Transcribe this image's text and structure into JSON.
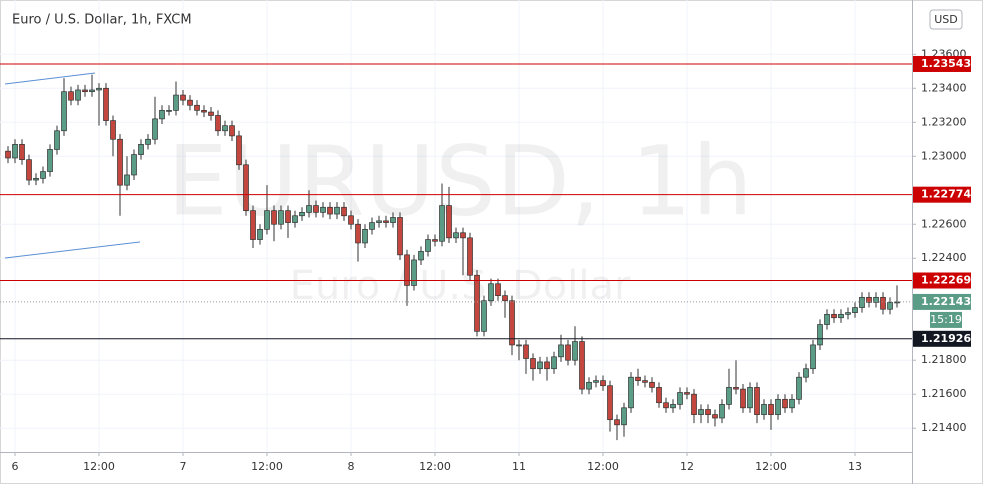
{
  "chart_data": {
    "type": "candlestick",
    "title": "Euro / U.S. Dollar, 1h, FXCM",
    "watermark": "EURUSD, 1h",
    "watermark_subtitle": "Euro / U.S. Dollar",
    "currency": "USD",
    "x_tick_labels": [
      "6",
      "12:00",
      "7",
      "12:00",
      "8",
      "12:00",
      "11",
      "12:00",
      "12",
      "12:00",
      "13"
    ],
    "ylim": [
      1.2126,
      1.2389
    ],
    "yticks": [
      {
        "value": 1.236,
        "label": "1.23600"
      },
      {
        "value": 1.234,
        "label": "1.23400"
      },
      {
        "value": 1.232,
        "label": "1.23200"
      },
      {
        "value": 1.23,
        "label": "1.23000"
      },
      {
        "value": 1.226,
        "label": "1.22600"
      },
      {
        "value": 1.224,
        "label": "1.22400"
      },
      {
        "value": 1.218,
        "label": "1.21800"
      },
      {
        "value": 1.216,
        "label": "1.21600"
      },
      {
        "value": 1.214,
        "label": "1.21400"
      }
    ],
    "grid": true,
    "up_color": "#5b9c87",
    "down_color": "#c4473f",
    "open": [
      1.2303,
      1.2299,
      1.2307,
      1.2298,
      1.2286,
      1.2287,
      1.2291,
      1.2304,
      1.2315,
      1.2338,
      1.2333,
      1.2339,
      1.2338,
      1.2339,
      1.234,
      1.2321,
      1.231,
      1.2283,
      1.2289,
      1.2301,
      1.2307,
      1.231,
      1.2322,
      1.2327,
      1.2327,
      1.2336,
      1.2333,
      1.233,
      1.2327,
      1.2326,
      1.2324,
      1.2315,
      1.2318,
      1.2312,
      1.2295,
      1.2268,
      1.2251,
      1.2257,
      1.2268,
      1.226,
      1.2268,
      1.2261,
      1.2265,
      1.2267,
      1.2271,
      1.2267,
      1.227,
      1.2266,
      1.227,
      1.2265,
      1.226,
      1.2249,
      1.2257,
      1.2261,
      1.2262,
      1.2261,
      1.2264,
      1.2242,
      1.2224,
      1.2239,
      1.2244,
      1.2251,
      1.225,
      1.2271,
      1.2252,
      1.2255,
      1.2252,
      1.223,
      1.2197,
      1.2215,
      1.2225,
      1.2218,
      1.2215,
      1.2189,
      1.2189,
      1.2181,
      1.2175,
      1.2179,
      1.2175,
      1.2182,
      1.2189,
      1.218,
      1.2191,
      1.2163,
      1.2167,
      1.2168,
      1.2165,
      1.2145,
      1.2142,
      1.2152,
      1.217,
      1.2168,
      1.2167,
      1.2164,
      1.2155,
      1.2152,
      1.2154,
      1.2161,
      1.216,
      1.2148,
      1.2151,
      1.2148,
      1.2146,
      1.2154,
      1.2164,
      1.2163,
      1.2152,
      1.2164,
      1.2148,
      1.2154,
      1.2148,
      1.2157,
      1.2152,
      1.2157,
      1.217,
      1.2175,
      1.2189,
      1.2201,
      1.2207,
      1.2205,
      1.2207,
      1.2208,
      1.2211,
      1.2217,
      1.2214,
      1.2217,
      1.221,
      1.2214
    ],
    "high": [
      1.2306,
      1.231,
      1.231,
      1.2301,
      1.229,
      1.2294,
      1.2307,
      1.2318,
      1.2346,
      1.2341,
      1.2342,
      1.2342,
      1.2348,
      1.2343,
      1.2343,
      1.2324,
      1.2313,
      1.23,
      1.2304,
      1.231,
      1.2313,
      1.2335,
      1.233,
      1.233,
      1.2344,
      1.2339,
      1.2336,
      1.2333,
      1.233,
      1.2329,
      1.2327,
      1.2321,
      1.2321,
      1.2315,
      1.2298,
      1.2271,
      1.226,
      1.2283,
      1.2271,
      1.2271,
      1.2271,
      1.2268,
      1.227,
      1.228,
      1.2274,
      1.2273,
      1.2273,
      1.2273,
      1.2273,
      1.2268,
      1.2263,
      1.226,
      1.2264,
      1.2265,
      1.2265,
      1.2267,
      1.2267,
      1.2245,
      1.2242,
      1.2247,
      1.2254,
      1.2254,
      1.2284,
      1.2282,
      1.2258,
      1.2258,
      1.2255,
      1.2233,
      1.2218,
      1.2228,
      1.2228,
      1.2221,
      1.2218,
      1.2192,
      1.2192,
      1.2184,
      1.2182,
      1.2182,
      1.2185,
      1.2195,
      1.2192,
      1.22,
      1.2194,
      1.217,
      1.2171,
      1.2171,
      1.2168,
      1.2148,
      1.2155,
      1.2173,
      1.2175,
      1.2171,
      1.217,
      1.2167,
      1.2158,
      1.2157,
      1.2164,
      1.2164,
      1.2163,
      1.2154,
      1.2154,
      1.2151,
      1.2157,
      1.2175,
      1.218,
      1.2166,
      1.2167,
      1.2167,
      1.2157,
      1.2157,
      1.216,
      1.216,
      1.216,
      1.2173,
      1.2178,
      1.2192,
      1.2204,
      1.221,
      1.221,
      1.221,
      1.2211,
      1.2214,
      1.222,
      1.222,
      1.222,
      1.222,
      1.2217,
      1.2224
    ],
    "low": [
      1.2296,
      1.2296,
      1.2295,
      1.2283,
      1.2283,
      1.2284,
      1.2288,
      1.2301,
      1.2312,
      1.233,
      1.233,
      1.2335,
      1.2335,
      1.2318,
      1.2318,
      1.23,
      1.2265,
      1.228,
      1.2286,
      1.2298,
      1.2304,
      1.2307,
      1.2319,
      1.2324,
      1.2324,
      1.233,
      1.2327,
      1.2324,
      1.2323,
      1.2321,
      1.2312,
      1.2312,
      1.2309,
      1.2292,
      1.2265,
      1.2246,
      1.2248,
      1.2254,
      1.225,
      1.2257,
      1.2252,
      1.2258,
      1.2262,
      1.2264,
      1.2264,
      1.2264,
      1.2263,
      1.2263,
      1.2262,
      1.2257,
      1.2238,
      1.2246,
      1.2254,
      1.2258,
      1.2258,
      1.2258,
      1.2239,
      1.2212,
      1.2221,
      1.2236,
      1.2241,
      1.2247,
      1.2247,
      1.2249,
      1.2249,
      1.223,
      1.2227,
      1.2194,
      1.2194,
      1.2212,
      1.2215,
      1.2205,
      1.2183,
      1.218,
      1.2172,
      1.2168,
      1.2172,
      1.2168,
      1.2172,
      1.2179,
      1.2177,
      1.2177,
      1.216,
      1.216,
      1.2164,
      1.2162,
      1.2138,
      1.2133,
      1.2135,
      1.2149,
      1.2165,
      1.2164,
      1.2161,
      1.2152,
      1.2149,
      1.2149,
      1.2151,
      1.2157,
      1.2143,
      1.2143,
      1.2143,
      1.2141,
      1.2143,
      1.2151,
      1.216,
      1.2149,
      1.2149,
      1.2143,
      1.2145,
      1.2139,
      1.2145,
      1.2149,
      1.2149,
      1.2154,
      1.2167,
      1.2172,
      1.2186,
      1.2198,
      1.2202,
      1.2202,
      1.2204,
      1.2205,
      1.2208,
      1.2211,
      1.2211,
      1.2207,
      1.2207,
      1.2211
    ],
    "close": [
      1.2299,
      1.2307,
      1.2298,
      1.2286,
      1.2287,
      1.2291,
      1.2304,
      1.2315,
      1.2338,
      1.2333,
      1.2339,
      1.2338,
      1.2339,
      1.234,
      1.2321,
      1.231,
      1.2283,
      1.2289,
      1.2301,
      1.2307,
      1.231,
      1.2322,
      1.2327,
      1.2327,
      1.2336,
      1.2333,
      1.233,
      1.2327,
      1.2326,
      1.2324,
      1.2315,
      1.2318,
      1.2312,
      1.2295,
      1.2268,
      1.2251,
      1.2257,
      1.2268,
      1.226,
      1.2268,
      1.2261,
      1.2265,
      1.2267,
      1.2271,
      1.2267,
      1.227,
      1.2266,
      1.227,
      1.2265,
      1.226,
      1.2249,
      1.2257,
      1.2261,
      1.2262,
      1.2261,
      1.2264,
      1.2242,
      1.2224,
      1.2239,
      1.2244,
      1.2251,
      1.225,
      1.2271,
      1.2252,
      1.2255,
      1.2252,
      1.223,
      1.2197,
      1.2215,
      1.2225,
      1.2218,
      1.2215,
      1.2189,
      1.2189,
      1.2181,
      1.2175,
      1.2179,
      1.2175,
      1.2182,
      1.2189,
      1.218,
      1.2191,
      1.2163,
      1.2167,
      1.2168,
      1.2165,
      1.2145,
      1.2142,
      1.2152,
      1.217,
      1.2168,
      1.2167,
      1.2164,
      1.2155,
      1.2152,
      1.2154,
      1.2161,
      1.216,
      1.2148,
      1.2151,
      1.2148,
      1.2146,
      1.2154,
      1.2164,
      1.2163,
      1.2152,
      1.2164,
      1.2148,
      1.2154,
      1.2148,
      1.2157,
      1.2152,
      1.2157,
      1.217,
      1.2175,
      1.2189,
      1.2201,
      1.2207,
      1.2205,
      1.2207,
      1.2208,
      1.2211,
      1.2217,
      1.2214,
      1.2217,
      1.221,
      1.2214,
      1.22143
    ],
    "levels": [
      {
        "value": 1.23543,
        "color": "#cc0000"
      },
      {
        "value": 1.22774,
        "color": "#cc0000"
      },
      {
        "value": 1.22269,
        "color": "#cc0000"
      },
      {
        "value": 1.21926,
        "color": "#131722"
      }
    ],
    "last_price": 1.22143,
    "countdown": "15:19"
  }
}
